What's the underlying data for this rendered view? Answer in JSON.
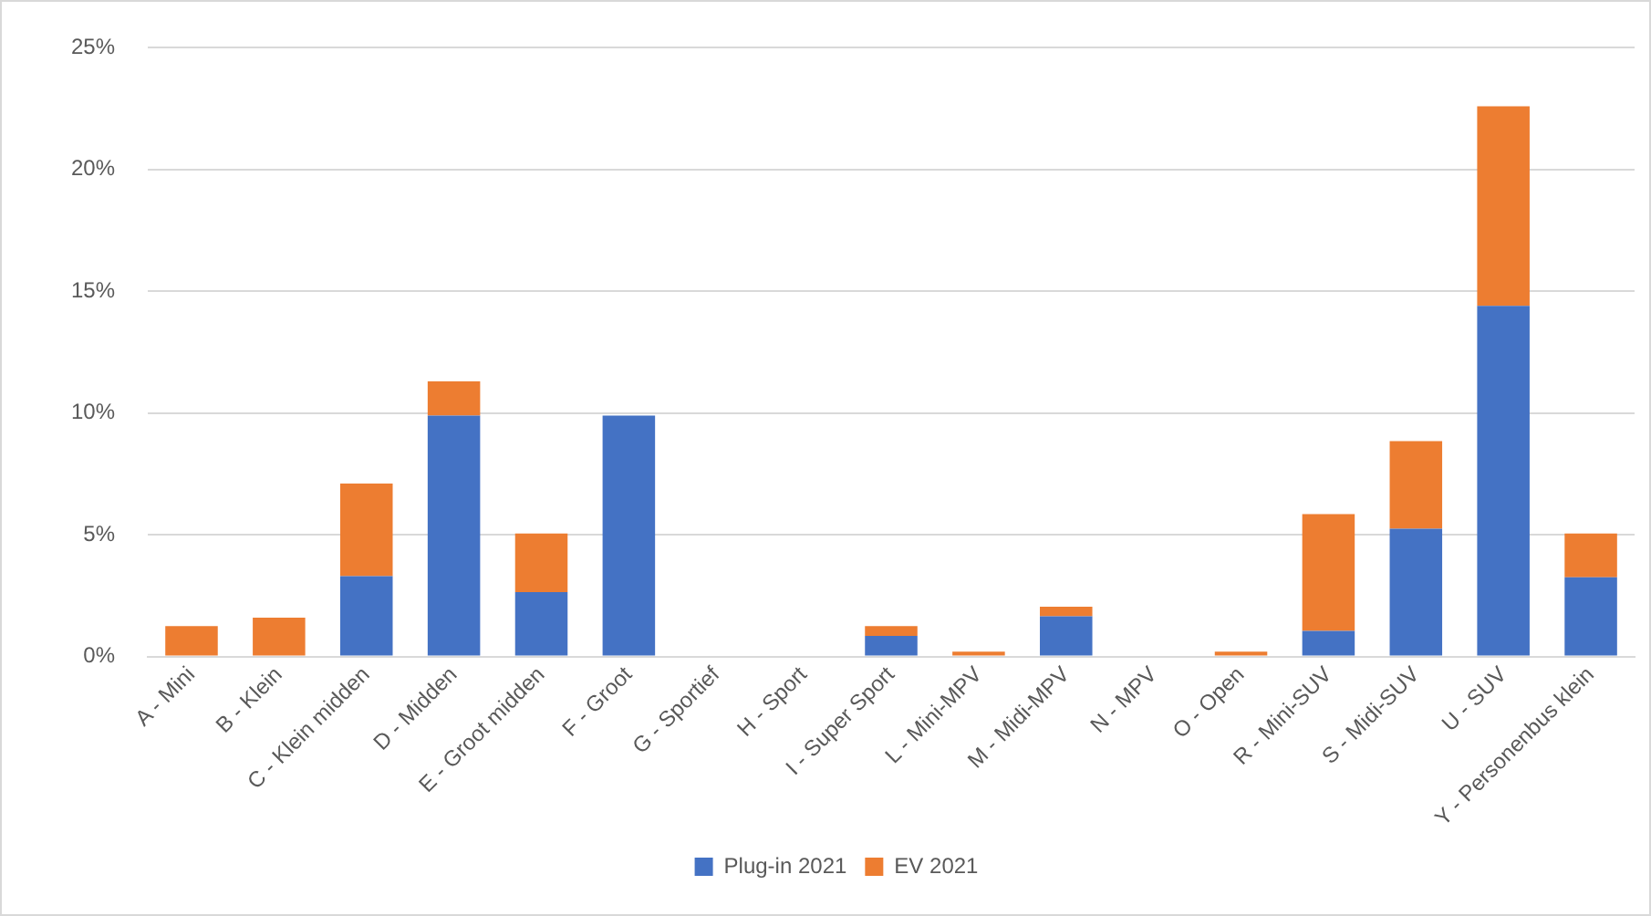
{
  "chart_data": {
    "type": "bar",
    "stacked": true,
    "categories": [
      "A - Mini",
      "B - Klein",
      "C - Klein midden",
      "D - Midden",
      "E - Groot midden",
      "F - Groot",
      "G - Sportief",
      "H - Sport",
      "I - Super Sport",
      "L - Mini-MPV",
      "M - Midi-MPV",
      "N - MPV",
      "O - Open",
      "R - Mini-SUV",
      "S - Midi-SUV",
      "U - SUV",
      "Y - Personenbus klein"
    ],
    "series": [
      {
        "name": "Plug-in 2021",
        "color": "#4472c4",
        "values": [
          0,
          0,
          3.3,
          9.9,
          2.65,
          9.9,
          0,
          0,
          0.85,
          0,
          1.65,
          0,
          0,
          1.05,
          5.25,
          14.4,
          3.25
        ]
      },
      {
        "name": "EV 2021",
        "color": "#ed7d31",
        "values": [
          1.25,
          1.6,
          3.8,
          1.4,
          2.4,
          0,
          0,
          0,
          0.4,
          0.2,
          0.4,
          0,
          0.2,
          4.8,
          3.6,
          8.2,
          1.8
        ]
      }
    ],
    "ylim": [
      0,
      25
    ],
    "yticks": [
      {
        "value": 0,
        "label": "0%"
      },
      {
        "value": 5,
        "label": "5%"
      },
      {
        "value": 10,
        "label": "10%"
      },
      {
        "value": 15,
        "label": "15%"
      },
      {
        "value": 20,
        "label": "20%"
      },
      {
        "value": 25,
        "label": "25%"
      }
    ],
    "grid": "y",
    "legend": "bottom"
  }
}
